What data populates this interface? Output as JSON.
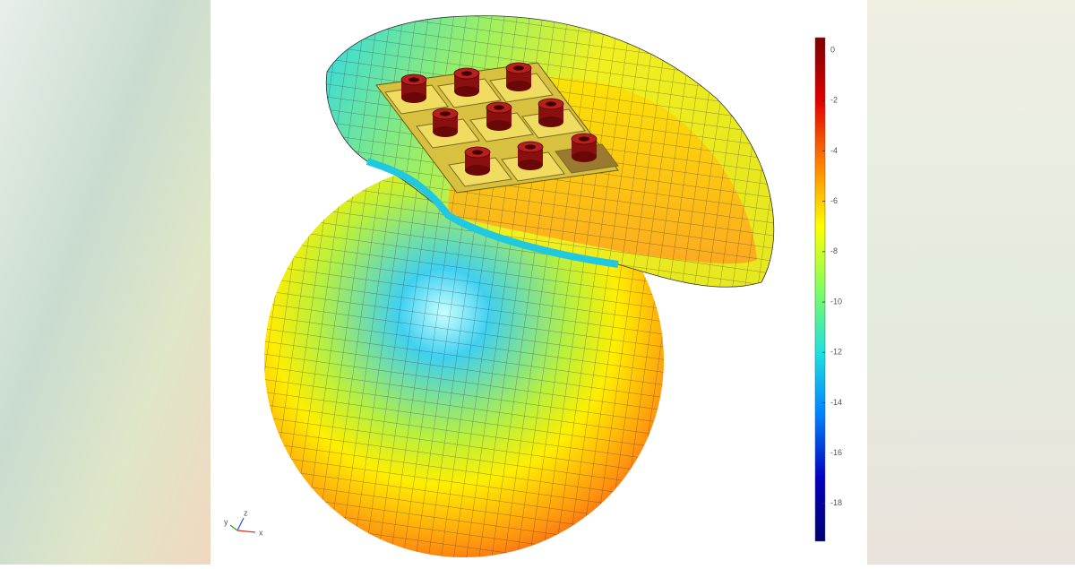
{
  "colorbar": {
    "lim": [
      -19.5,
      0.5
    ],
    "ticks": [
      0,
      -2,
      -4,
      -6,
      -8,
      -10,
      -12,
      -14,
      -16,
      -18
    ],
    "colors": [
      "#7a0000",
      "#e00000",
      "#ff8000",
      "#ffff00",
      "#80ff60",
      "#20e0e0",
      "#0080ff",
      "#0000c0",
      "#000070"
    ]
  },
  "axes_triad": {
    "labels": [
      "x",
      "y",
      "z"
    ]
  }
}
